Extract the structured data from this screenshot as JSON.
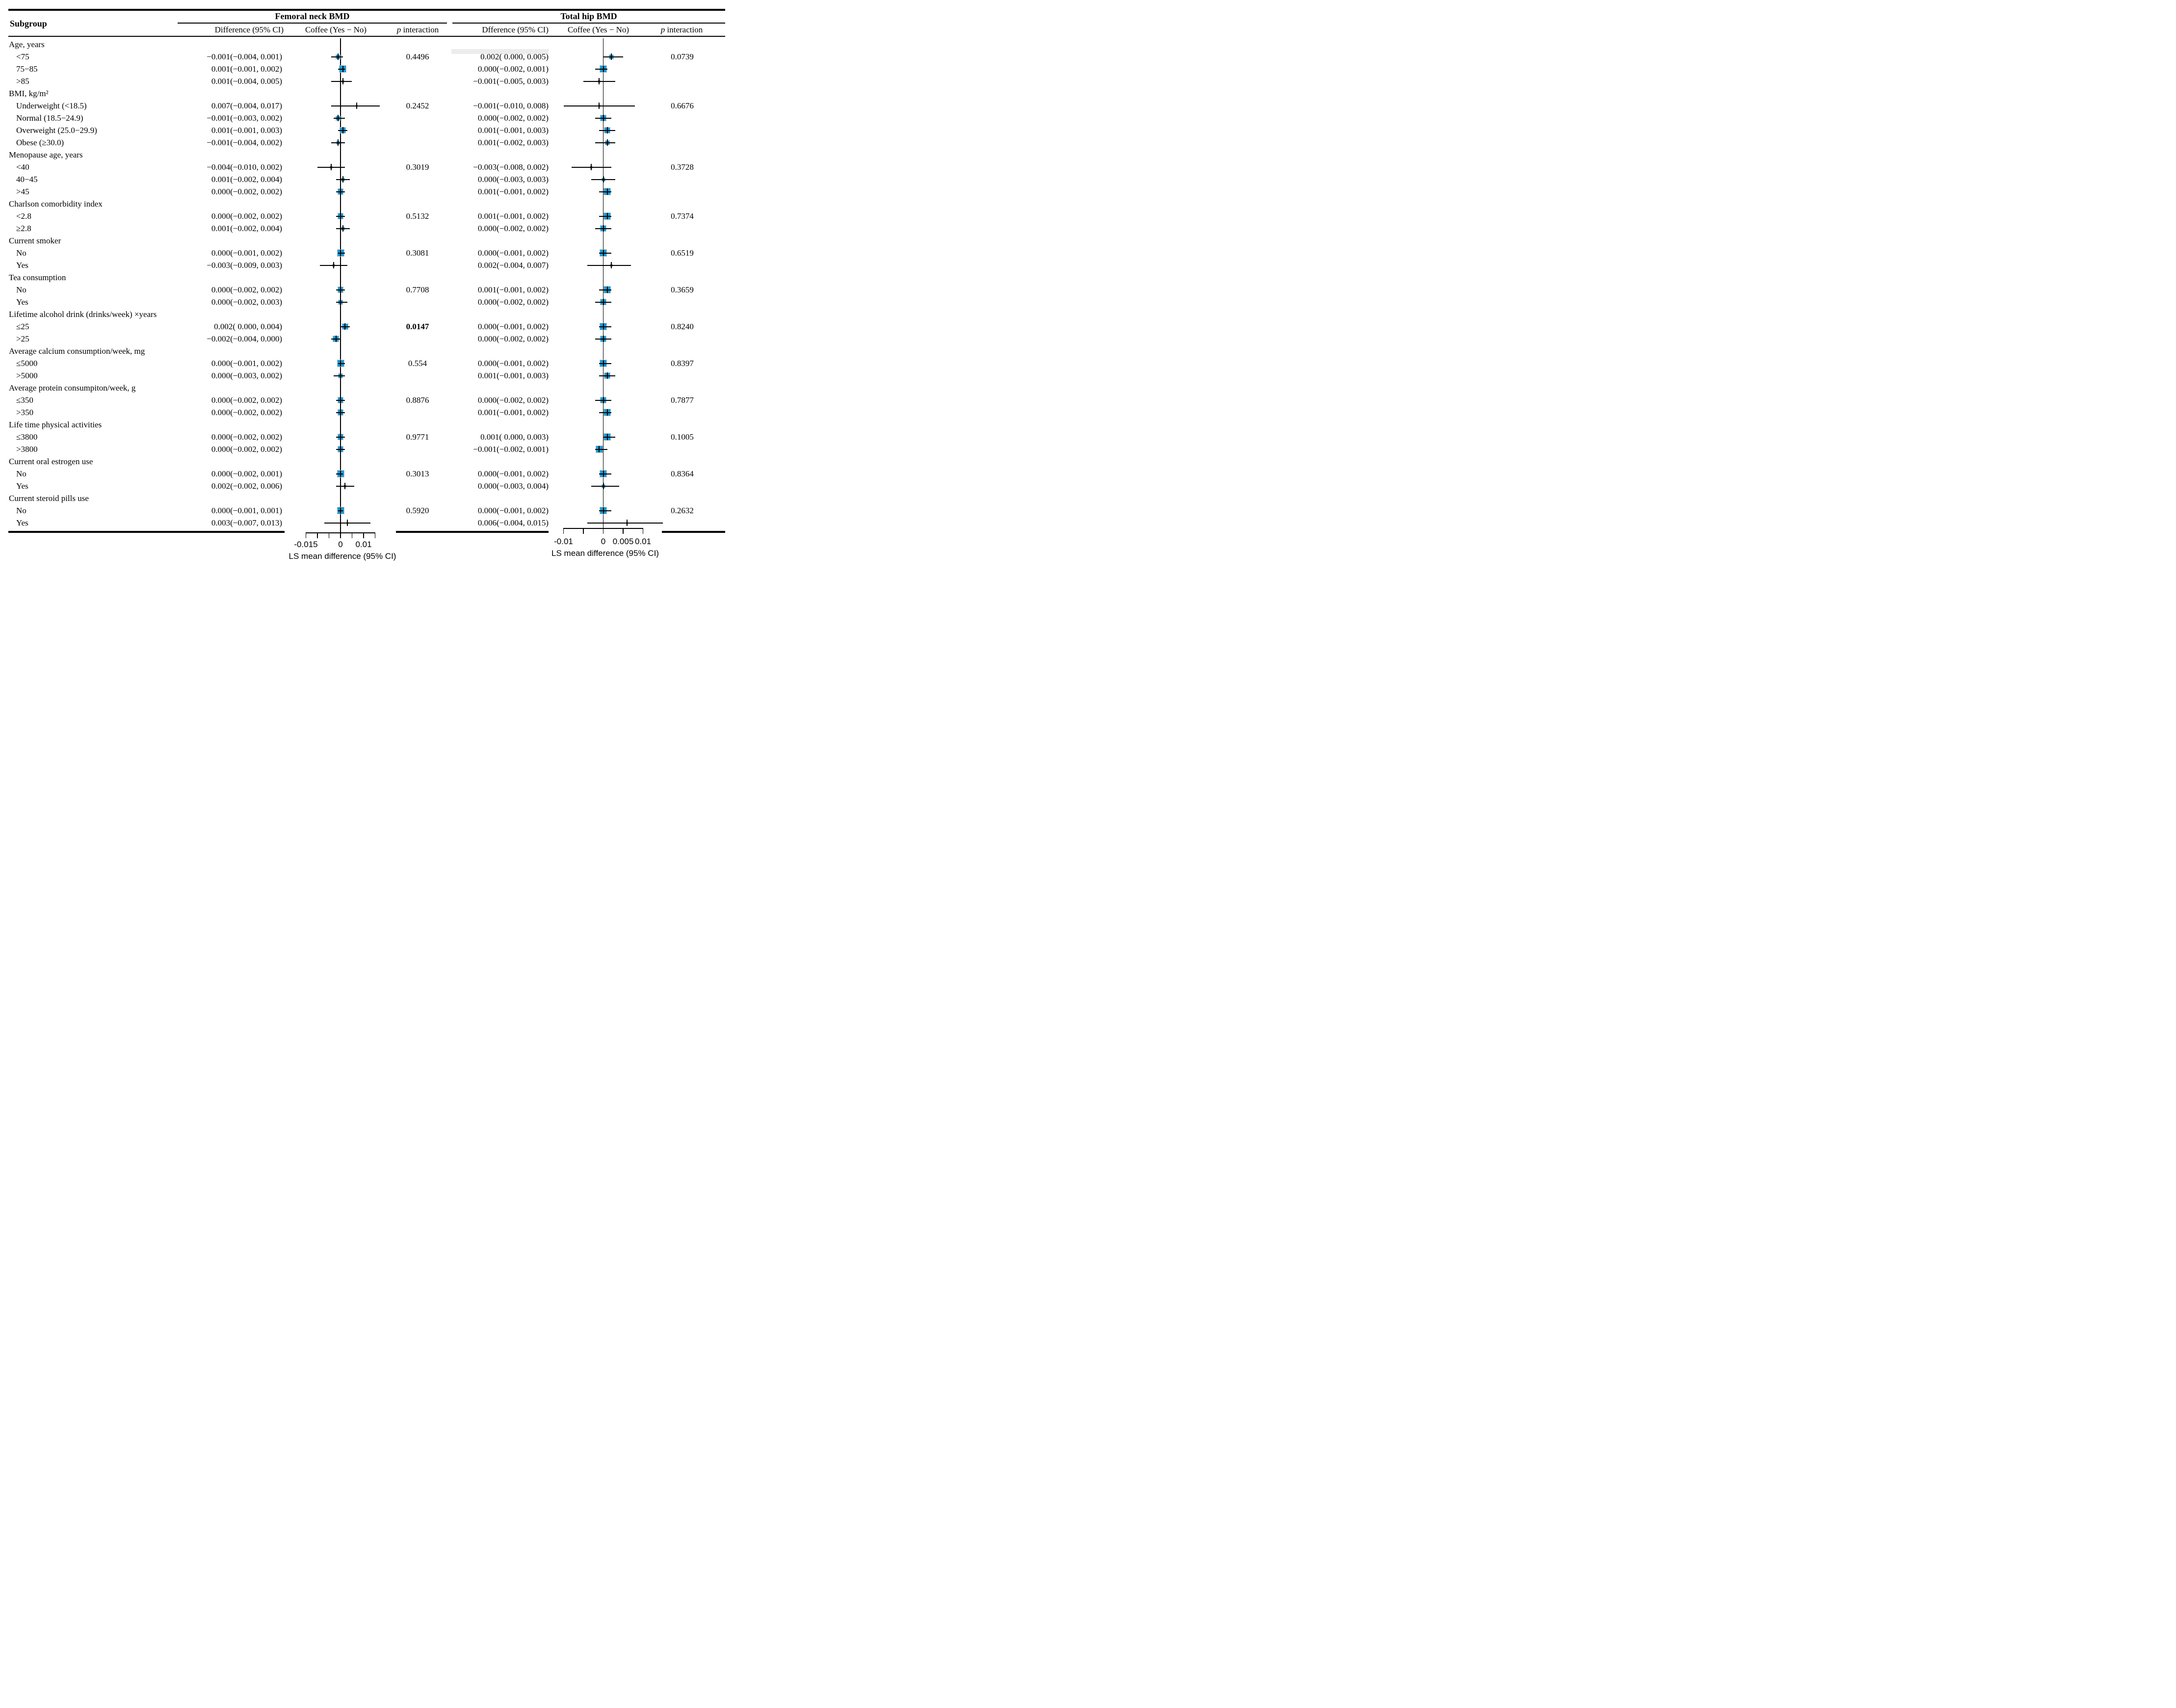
{
  "colors": {
    "marker_fill": "#1899d6",
    "marker_border": "#c4c4c4",
    "line": "#000000",
    "background": "#ffffff",
    "artifact_band": "#ececec"
  },
  "chart_data": {
    "type": "forest",
    "subgroup_col": "Subgroup",
    "panels": [
      {
        "id": "femoral",
        "title": "Femoral neck BMD",
        "col_diff": "Difference (95% CI)",
        "col_plot": "Coffee (Yes − No)",
        "col_p_italic": "p",
        "col_p_rest": "interaction",
        "axis": {
          "min": -0.015,
          "max": 0.015,
          "ticks": [
            -0.015,
            -0.01,
            -0.005,
            0,
            0.005,
            0.01,
            0.015
          ],
          "labels": [
            {
              "value": -0.015,
              "text": "-0.015"
            },
            {
              "value": 0,
              "text": "0"
            },
            {
              "value": 0.01,
              "text": "0.01"
            }
          ],
          "xlabel": "LS mean difference (95% CI)"
        }
      },
      {
        "id": "hip",
        "title": "Total hip BMD",
        "col_diff": "Dfference (95% CI)",
        "col_plot": "Coffee (Yes − No)",
        "col_p_italic": "p",
        "col_p_rest": "interaction",
        "axis": {
          "min": -0.01,
          "max": 0.01,
          "ticks": [
            -0.01,
            -0.005,
            0,
            0.005,
            0.01
          ],
          "labels": [
            {
              "value": -0.01,
              "text": "-0.01"
            },
            {
              "value": 0,
              "text": "0"
            },
            {
              "value": 0.005,
              "text": "0.005"
            },
            {
              "value": 0.01,
              "text": "0.01"
            }
          ],
          "xlabel": "LS mean difference (95% CI)"
        }
      }
    ],
    "sections": [
      {
        "label": "Age, years",
        "rows": [
          {
            "label": "<75",
            "f": {
              "text": "−0.001(−0.004, 0.001)",
              "est": -0.001,
              "lo": -0.004,
              "hi": 0.001
            },
            "fp": "0.4496",
            "h": {
              "text": "0.002( 0.000, 0.005)",
              "est": 0.002,
              "lo": 0.0,
              "hi": 0.005
            },
            "hp": "0.0739"
          },
          {
            "label": "75−85",
            "f": {
              "text": "0.001(−0.001, 0.002)",
              "est": 0.001,
              "lo": -0.001,
              "hi": 0.002
            },
            "h": {
              "text": "0.000(−0.002, 0.001)",
              "est": 0.0,
              "lo": -0.002,
              "hi": 0.001
            }
          },
          {
            "label": ">85",
            "f": {
              "text": "0.001(−0.004, 0.005)",
              "est": 0.001,
              "lo": -0.004,
              "hi": 0.005
            },
            "h": {
              "text": "−0.001(−0.005, 0.003)",
              "est": -0.001,
              "lo": -0.005,
              "hi": 0.003
            }
          }
        ]
      },
      {
        "label": "BMI, kg/m²",
        "rows": [
          {
            "label": "Underweight (<18.5)",
            "f": {
              "text": "0.007(−0.004, 0.017)",
              "est": 0.007,
              "lo": -0.004,
              "hi": 0.017
            },
            "fp": "0.2452",
            "h": {
              "text": "−0.001(−0.010, 0.008)",
              "est": -0.001,
              "lo": -0.01,
              "hi": 0.008
            },
            "hp": "0.6676"
          },
          {
            "label": "Normal (18.5−24.9)",
            "f": {
              "text": "−0.001(−0.003, 0.002)",
              "est": -0.001,
              "lo": -0.003,
              "hi": 0.002
            },
            "h": {
              "text": "0.000(−0.002, 0.002)",
              "est": 0.0,
              "lo": -0.002,
              "hi": 0.002
            }
          },
          {
            "label": "Overweight (25.0−29.9)",
            "f": {
              "text": "0.001(−0.001, 0.003)",
              "est": 0.001,
              "lo": -0.001,
              "hi": 0.003
            },
            "h": {
              "text": "0.001(−0.001, 0.003)",
              "est": 0.001,
              "lo": -0.001,
              "hi": 0.003
            }
          },
          {
            "label": "Obese (≥30.0)",
            "f": {
              "text": "−0.001(−0.004, 0.002)",
              "est": -0.001,
              "lo": -0.004,
              "hi": 0.002
            },
            "h": {
              "text": "0.001(−0.002, 0.003)",
              "est": 0.001,
              "lo": -0.002,
              "hi": 0.003
            }
          }
        ]
      },
      {
        "label": "Menopause age, years",
        "rows": [
          {
            "label": "<40",
            "f": {
              "text": "−0.004(−0.010, 0.002)",
              "est": -0.004,
              "lo": -0.01,
              "hi": 0.002
            },
            "fp": "0.3019",
            "h": {
              "text": "−0.003(−0.008, 0.002)",
              "est": -0.003,
              "lo": -0.008,
              "hi": 0.002
            },
            "hp": "0.3728"
          },
          {
            "label": "40−45",
            "f": {
              "text": "0.001(−0.002, 0.004)",
              "est": 0.001,
              "lo": -0.002,
              "hi": 0.004
            },
            "h": {
              "text": "0.000(−0.003, 0.003)",
              "est": 0.0,
              "lo": -0.003,
              "hi": 0.003
            }
          },
          {
            "label": ">45",
            "f": {
              "text": "0.000(−0.002, 0.002)",
              "est": 0.0,
              "lo": -0.002,
              "hi": 0.002
            },
            "h": {
              "text": "0.001(−0.001, 0.002)",
              "est": 0.001,
              "lo": -0.001,
              "hi": 0.002
            }
          }
        ]
      },
      {
        "label": "Charlson comorbidity index",
        "rows": [
          {
            "label": "<2.8",
            "f": {
              "text": "0.000(−0.002, 0.002)",
              "est": 0.0,
              "lo": -0.002,
              "hi": 0.002
            },
            "fp": "0.5132",
            "h": {
              "text": "0.001(−0.001, 0.002)",
              "est": 0.001,
              "lo": -0.001,
              "hi": 0.002
            },
            "hp": "0.7374"
          },
          {
            "label": "≥2.8",
            "f": {
              "text": "0.001(−0.002, 0.004)",
              "est": 0.001,
              "lo": -0.002,
              "hi": 0.004
            },
            "h": {
              "text": "0.000(−0.002, 0.002)",
              "est": 0.0,
              "lo": -0.002,
              "hi": 0.002
            }
          }
        ]
      },
      {
        "label": "Current smoker",
        "rows": [
          {
            "label": "No",
            "f": {
              "text": "0.000(−0.001, 0.002)",
              "est": 0.0,
              "lo": -0.001,
              "hi": 0.002
            },
            "fp": "0.3081",
            "h": {
              "text": "0.000(−0.001, 0.002)",
              "est": 0.0,
              "lo": -0.001,
              "hi": 0.002
            },
            "hp": "0.6519"
          },
          {
            "label": "Yes",
            "f": {
              "text": "−0.003(−0.009, 0.003)",
              "est": -0.003,
              "lo": -0.009,
              "hi": 0.003
            },
            "h": {
              "text": "0.002(−0.004, 0.007)",
              "est": 0.002,
              "lo": -0.004,
              "hi": 0.007
            }
          }
        ]
      },
      {
        "label": "Tea consumption",
        "rows": [
          {
            "label": "No",
            "f": {
              "text": "0.000(−0.002, 0.002)",
              "est": 0.0,
              "lo": -0.002,
              "hi": 0.002
            },
            "fp": "0.7708",
            "h": {
              "text": "0.001(−0.001, 0.002)",
              "est": 0.001,
              "lo": -0.001,
              "hi": 0.002
            },
            "hp": "0.3659"
          },
          {
            "label": "Yes",
            "f": {
              "text": "0.000(−0.002, 0.003)",
              "est": 0.0,
              "lo": -0.002,
              "hi": 0.003
            },
            "h": {
              "text": "0.000(−0.002, 0.002)",
              "est": 0.0,
              "lo": -0.002,
              "hi": 0.002
            }
          }
        ]
      },
      {
        "label": "Lifetime alcohol drink (drinks/week) ×years",
        "rows": [
          {
            "label": "≤25",
            "f": {
              "text": "0.002( 0.000, 0.004)",
              "est": 0.002,
              "lo": 0.0,
              "hi": 0.004
            },
            "fp": "0.0147",
            "fp_bold": true,
            "h": {
              "text": "0.000(−0.001, 0.002)",
              "est": 0.0,
              "lo": -0.001,
              "hi": 0.002
            },
            "hp": "0.8240"
          },
          {
            "label": ">25",
            "f": {
              "text": "−0.002(−0.004, 0.000)",
              "est": -0.002,
              "lo": -0.004,
              "hi": 0.0
            },
            "h": {
              "text": "0.000(−0.002, 0.002)",
              "est": 0.0,
              "lo": -0.002,
              "hi": 0.002
            }
          }
        ]
      },
      {
        "label": "Average calcium consumption/week, mg",
        "rows": [
          {
            "label": "≤5000",
            "f": {
              "text": "0.000(−0.001, 0.002)",
              "est": 0.0,
              "lo": -0.001,
              "hi": 0.002
            },
            "fp": "0.554",
            "h": {
              "text": "0.000(−0.001, 0.002)",
              "est": 0.0,
              "lo": -0.001,
              "hi": 0.002
            },
            "hp": "0.8397"
          },
          {
            "label": ">5000",
            "f": {
              "text": "0.000(−0.003, 0.002)",
              "est": 0.0,
              "lo": -0.003,
              "hi": 0.002
            },
            "h": {
              "text": "0.001(−0.001, 0.003)",
              "est": 0.001,
              "lo": -0.001,
              "hi": 0.003
            }
          }
        ]
      },
      {
        "label": "Average protein consumpiton/week, g",
        "rows": [
          {
            "label": "≤350",
            "f": {
              "text": "0.000(−0.002, 0.002)",
              "est": 0.0,
              "lo": -0.002,
              "hi": 0.002
            },
            "fp": "0.8876",
            "h": {
              "text": "0.000(−0.002, 0.002)",
              "est": 0.0,
              "lo": -0.002,
              "hi": 0.002
            },
            "hp": "0.7877"
          },
          {
            "label": ">350",
            "f": {
              "text": "0.000(−0.002, 0.002)",
              "est": 0.0,
              "lo": -0.002,
              "hi": 0.002
            },
            "h": {
              "text": "0.001(−0.001, 0.002)",
              "est": 0.001,
              "lo": -0.001,
              "hi": 0.002
            }
          }
        ]
      },
      {
        "label": "Life time physical activities",
        "rows": [
          {
            "label": "≤3800",
            "f": {
              "text": "0.000(−0.002, 0.002)",
              "est": 0.0,
              "lo": -0.002,
              "hi": 0.002
            },
            "fp": "0.9771",
            "h": {
              "text": "0.001( 0.000, 0.003)",
              "est": 0.001,
              "lo": 0.0,
              "hi": 0.003
            },
            "hp": "0.1005"
          },
          {
            "label": ">3800",
            "f": {
              "text": "0.000(−0.002, 0.002)",
              "est": 0.0,
              "lo": -0.002,
              "hi": 0.002
            },
            "h": {
              "text": "−0.001(−0.002, 0.001)",
              "est": -0.001,
              "lo": -0.002,
              "hi": 0.001
            }
          }
        ]
      },
      {
        "label": "Current oral estrogen use",
        "rows": [
          {
            "label": "No",
            "f": {
              "text": "0.000(−0.002, 0.001)",
              "est": 0.0,
              "lo": -0.002,
              "hi": 0.001
            },
            "fp": "0.3013",
            "h": {
              "text": "0.000(−0.001, 0.002)",
              "est": 0.0,
              "lo": -0.001,
              "hi": 0.002
            },
            "hp": "0.8364"
          },
          {
            "label": "Yes",
            "f": {
              "text": "0.002(−0.002, 0.006)",
              "est": 0.002,
              "lo": -0.002,
              "hi": 0.006
            },
            "h": {
              "text": "0.000(−0.003, 0.004)",
              "est": 0.0,
              "lo": -0.003,
              "hi": 0.004
            }
          }
        ]
      },
      {
        "label": "Current steroid pills use",
        "rows": [
          {
            "label": "No",
            "f": {
              "text": "0.000(−0.001, 0.001)",
              "est": 0.0,
              "lo": -0.001,
              "hi": 0.001
            },
            "fp": "0.5920",
            "h": {
              "text": "0.000(−0.001, 0.002)",
              "est": 0.0,
              "lo": -0.001,
              "hi": 0.002
            },
            "hp": "0.2632"
          },
          {
            "label": "Yes",
            "f": {
              "text": "0.003(−0.007, 0.013)",
              "est": 0.003,
              "lo": -0.007,
              "hi": 0.013
            },
            "h": {
              "text": "0.006(−0.004, 0.015)",
              "est": 0.006,
              "lo": -0.004,
              "hi": 0.015
            }
          }
        ]
      }
    ]
  }
}
